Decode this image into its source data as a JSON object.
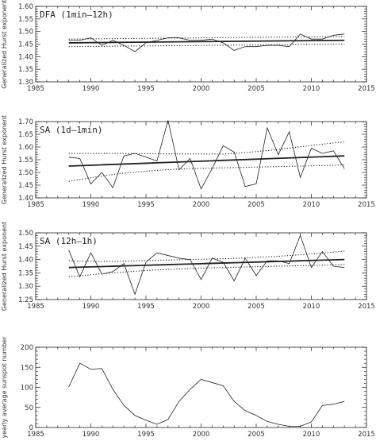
{
  "chart_data": [
    {
      "type": "line",
      "title": "",
      "annotation": "DFA (1min–12h)",
      "xlabel": "",
      "ylabel": "Generalized Hurst exponent",
      "xlim": [
        1985,
        2015
      ],
      "ylim": [
        1.3,
        1.6
      ],
      "xticks": [
        1985,
        1990,
        1995,
        2000,
        2005,
        2010,
        2015
      ],
      "yticks": [
        "1.30",
        "1.35",
        "1.40",
        "1.45",
        "1.50",
        "1.55",
        "1.60"
      ],
      "grid": false,
      "x": [
        1988,
        1989,
        1990,
        1991,
        1992,
        1993,
        1994,
        1995,
        1996,
        1997,
        1998,
        1999,
        2000,
        2001,
        2002,
        2003,
        2004,
        2005,
        2006,
        2007,
        2008,
        2009,
        2010,
        2011,
        2012,
        2013
      ],
      "series": [
        {
          "style": "solid-thin",
          "values": [
            1.465,
            1.465,
            1.475,
            1.445,
            1.465,
            1.445,
            1.42,
            1.455,
            1.465,
            1.475,
            1.475,
            1.465,
            1.465,
            1.47,
            1.455,
            1.425,
            1.44,
            1.44,
            1.445,
            1.445,
            1.44,
            1.49,
            1.47,
            1.47,
            1.485,
            1.49
          ]
        },
        {
          "style": "solid-thick",
          "values": [
            1.455,
            1.4554,
            1.4558,
            1.4562,
            1.4566,
            1.457,
            1.4574,
            1.4578,
            1.4582,
            1.4586,
            1.459,
            1.4594,
            1.4598,
            1.4602,
            1.4606,
            1.461,
            1.4614,
            1.4618,
            1.4622,
            1.4626,
            1.463,
            1.4634,
            1.4638,
            1.4642,
            1.4646,
            1.465
          ]
        },
        {
          "style": "dotted",
          "values": [
            1.47,
            1.4704,
            1.4708,
            1.4712,
            1.4716,
            1.472,
            1.4724,
            1.4728,
            1.4732,
            1.4736,
            1.474,
            1.4744,
            1.4748,
            1.4752,
            1.4756,
            1.476,
            1.4764,
            1.4768,
            1.4772,
            1.4776,
            1.478,
            1.4784,
            1.4788,
            1.4792,
            1.4796,
            1.48
          ]
        },
        {
          "style": "dotted",
          "values": [
            1.44,
            1.4404,
            1.4408,
            1.4412,
            1.4416,
            1.442,
            1.4424,
            1.4428,
            1.4432,
            1.4436,
            1.444,
            1.4444,
            1.4448,
            1.4452,
            1.4456,
            1.446,
            1.4464,
            1.4468,
            1.4472,
            1.4476,
            1.448,
            1.4484,
            1.4488,
            1.4492,
            1.4496,
            1.45
          ]
        }
      ]
    },
    {
      "type": "line",
      "title": "",
      "annotation": "SA (1d–1min)",
      "xlabel": "",
      "ylabel": "Generalized Hurst exponent",
      "xlim": [
        1985,
        2015
      ],
      "ylim": [
        1.4,
        1.7
      ],
      "xticks": [
        1985,
        1990,
        1995,
        2000,
        2005,
        2010,
        2015
      ],
      "yticks": [
        "1.40",
        "1.45",
        "1.50",
        "1.55",
        "1.60",
        "1.65",
        "1.70"
      ],
      "grid": false,
      "x": [
        1988,
        1989,
        1990,
        1991,
        1992,
        1993,
        1994,
        1995,
        1996,
        1997,
        1998,
        1999,
        2000,
        2001,
        2002,
        2003,
        2004,
        2005,
        2006,
        2007,
        2008,
        2009,
        2010,
        2011,
        2012,
        2013
      ],
      "series": [
        {
          "style": "solid-thin",
          "values": [
            1.56,
            1.555,
            1.455,
            1.5,
            1.44,
            1.565,
            1.575,
            1.56,
            1.545,
            1.705,
            1.51,
            1.555,
            1.435,
            1.515,
            1.605,
            1.58,
            1.445,
            1.455,
            1.675,
            1.57,
            1.66,
            1.48,
            1.595,
            1.575,
            1.585,
            1.515
          ]
        },
        {
          "style": "solid-thick",
          "values": [
            1.525,
            1.5266,
            1.5282,
            1.5298,
            1.5314,
            1.533,
            1.5346,
            1.5362,
            1.5378,
            1.5394,
            1.541,
            1.5426,
            1.5442,
            1.5458,
            1.5474,
            1.549,
            1.5506,
            1.5522,
            1.5538,
            1.5554,
            1.557,
            1.5586,
            1.5602,
            1.5618,
            1.5634,
            1.565
          ]
        },
        {
          "style": "dotted",
          "values": [
            1.575,
            1.5748,
            1.5746,
            1.5744,
            1.5742,
            1.574,
            1.5738,
            1.5736,
            1.5734,
            1.5732,
            1.573,
            1.5728,
            1.5726,
            1.5724,
            1.5722,
            1.575,
            1.578,
            1.582,
            1.586,
            1.591,
            1.596,
            1.601,
            1.606,
            1.611,
            1.616,
            1.62
          ]
        },
        {
          "style": "dotted",
          "values": [
            1.465,
            1.472,
            1.479,
            1.486,
            1.492,
            1.497,
            1.501,
            1.505,
            1.508,
            1.511,
            1.513,
            1.515,
            1.516,
            1.517,
            1.518,
            1.519,
            1.52,
            1.521,
            1.522,
            1.523,
            1.524,
            1.525,
            1.526,
            1.527,
            1.528,
            1.53
          ]
        }
      ]
    },
    {
      "type": "line",
      "title": "",
      "annotation": "SA (12h–1h)",
      "xlabel": "",
      "ylabel": "Generalized Hurst exponent",
      "xlim": [
        1985,
        2015
      ],
      "ylim": [
        1.25,
        1.5
      ],
      "xticks": [
        1985,
        1990,
        1995,
        2000,
        2005,
        2010,
        2015
      ],
      "yticks": [
        "1.25",
        "1.30",
        "1.35",
        "1.40",
        "1.45",
        "1.50"
      ],
      "grid": false,
      "x": [
        1988,
        1989,
        1990,
        1991,
        1992,
        1993,
        1994,
        1995,
        1996,
        1997,
        1998,
        1999,
        2000,
        2001,
        2002,
        2003,
        2004,
        2005,
        2006,
        2007,
        2008,
        2009,
        2010,
        2011,
        2012,
        2013
      ],
      "series": [
        {
          "style": "solid-thin",
          "values": [
            1.435,
            1.335,
            1.425,
            1.345,
            1.355,
            1.385,
            1.27,
            1.39,
            1.425,
            1.415,
            1.405,
            1.4,
            1.325,
            1.405,
            1.39,
            1.32,
            1.405,
            1.34,
            1.395,
            1.395,
            1.385,
            1.49,
            1.37,
            1.43,
            1.375,
            1.37
          ]
        },
        {
          "style": "solid-thick",
          "values": [
            1.37,
            1.3712,
            1.3724,
            1.3736,
            1.3748,
            1.376,
            1.3772,
            1.3784,
            1.3796,
            1.3808,
            1.382,
            1.3832,
            1.3844,
            1.3856,
            1.3868,
            1.388,
            1.3892,
            1.3904,
            1.3916,
            1.3928,
            1.394,
            1.3952,
            1.3964,
            1.3976,
            1.3988,
            1.4
          ]
        },
        {
          "style": "dotted",
          "values": [
            1.395,
            1.394,
            1.393,
            1.393,
            1.393,
            1.394,
            1.395,
            1.396,
            1.397,
            1.398,
            1.399,
            1.4,
            1.401,
            1.402,
            1.403,
            1.404,
            1.406,
            1.408,
            1.41,
            1.412,
            1.415,
            1.418,
            1.421,
            1.424,
            1.428,
            1.432
          ]
        },
        {
          "style": "dotted",
          "values": [
            1.335,
            1.339,
            1.343,
            1.347,
            1.35,
            1.353,
            1.356,
            1.359,
            1.361,
            1.363,
            1.365,
            1.367,
            1.368,
            1.369,
            1.37,
            1.371,
            1.372,
            1.373,
            1.374,
            1.375,
            1.376,
            1.377,
            1.378,
            1.379,
            1.38,
            1.381
          ]
        }
      ]
    },
    {
      "type": "line",
      "title": "",
      "annotation": "",
      "xlabel": "",
      "ylabel": "yearly average sunspot number",
      "xlim": [
        1985,
        2015
      ],
      "ylim": [
        0,
        200
      ],
      "xticks": [
        1985,
        1990,
        1995,
        2000,
        2005,
        2010,
        2015
      ],
      "yticks": [
        "0",
        "50",
        "100",
        "150",
        "200"
      ],
      "grid": false,
      "x": [
        1988,
        1989,
        1990,
        1991,
        1992,
        1993,
        1994,
        1995,
        1996,
        1997,
        1998,
        1999,
        2000,
        2001,
        2002,
        2003,
        2004,
        2005,
        2006,
        2007,
        2008,
        2009,
        2010,
        2011,
        2012,
        2013
      ],
      "series": [
        {
          "style": "solid-thin",
          "values": [
            101,
            160,
            145,
            147,
            95,
            55,
            30,
            18,
            8,
            20,
            65,
            95,
            120,
            112,
            104,
            65,
            42,
            30,
            15,
            8,
            3,
            3,
            14,
            55,
            58,
            65
          ]
        }
      ]
    }
  ]
}
